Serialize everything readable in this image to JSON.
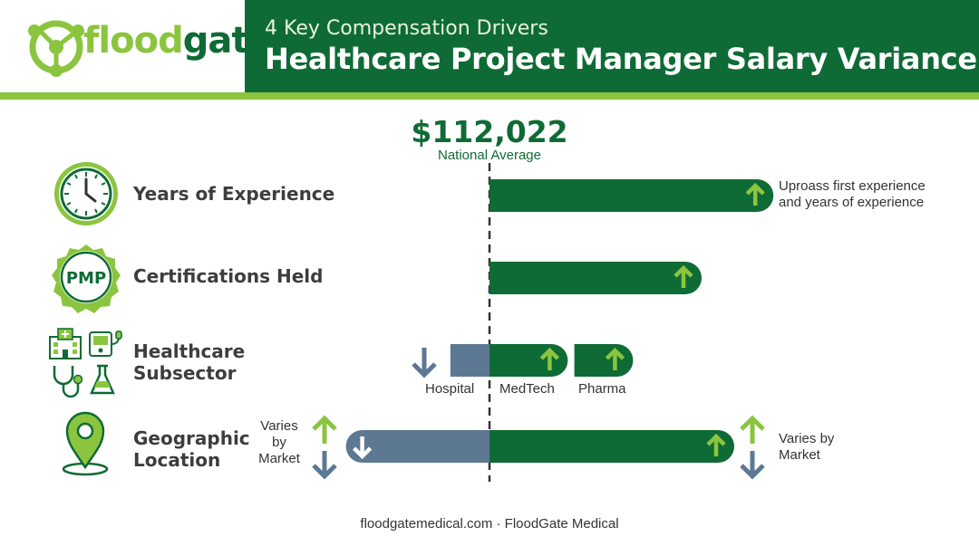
{
  "brand": {
    "logo_left": "flood",
    "logo_right": "gate"
  },
  "header": {
    "subtitle": "4 Key Compensation Drivers",
    "title": "Healthcare Project Manager Salary Variance"
  },
  "colors": {
    "dark_green": "#0f6b35",
    "light_green": "#8bc53f",
    "slate": "#5c7893",
    "white": "#ffffff"
  },
  "chart_data": {
    "type": "bar",
    "orientation": "horizontal-diverging",
    "baseline_value": "$112,022",
    "baseline_label": "National Average",
    "rows": [
      {
        "label": "Years of Experience",
        "icon": "clock-icon",
        "bars": [
          {
            "from": 0,
            "to": 0.87,
            "direction": "up",
            "color": "dark_green"
          }
        ],
        "note": [
          "Uproass first experience",
          "and years of experience"
        ]
      },
      {
        "label": "Certifications Held",
        "icon": "pmp-badge-icon",
        "badge_text": "PMP",
        "bars": [
          {
            "from": 0,
            "to": 0.65,
            "direction": "up",
            "color": "dark_green"
          }
        ]
      },
      {
        "label_lines": [
          "Healthcare",
          "Subsector"
        ],
        "icon": "healthcare-icons",
        "bars": [
          {
            "from": -0.12,
            "to": 0,
            "direction": "down",
            "color": "slate",
            "category": "Hospital"
          },
          {
            "from": 0,
            "to": 0.24,
            "direction": "up",
            "color": "dark_green",
            "category": "MedTech"
          },
          {
            "from": 0.26,
            "to": 0.44,
            "direction": "up",
            "color": "dark_green",
            "category": "Pharma"
          }
        ]
      },
      {
        "label_lines": [
          "Geographic",
          "Location"
        ],
        "icon": "location-pin-icon",
        "bars": [
          {
            "from": -0.44,
            "to": 0,
            "direction": "down",
            "color": "slate"
          },
          {
            "from": 0,
            "to": 0.75,
            "direction": "up",
            "color": "dark_green"
          }
        ],
        "left_note": [
          "Varies",
          "by",
          "Market"
        ],
        "right_note": [
          "Varies by",
          "Market"
        ]
      }
    ]
  },
  "footer": {
    "text": "floodgatemedical.com · FloodGate Medical"
  }
}
